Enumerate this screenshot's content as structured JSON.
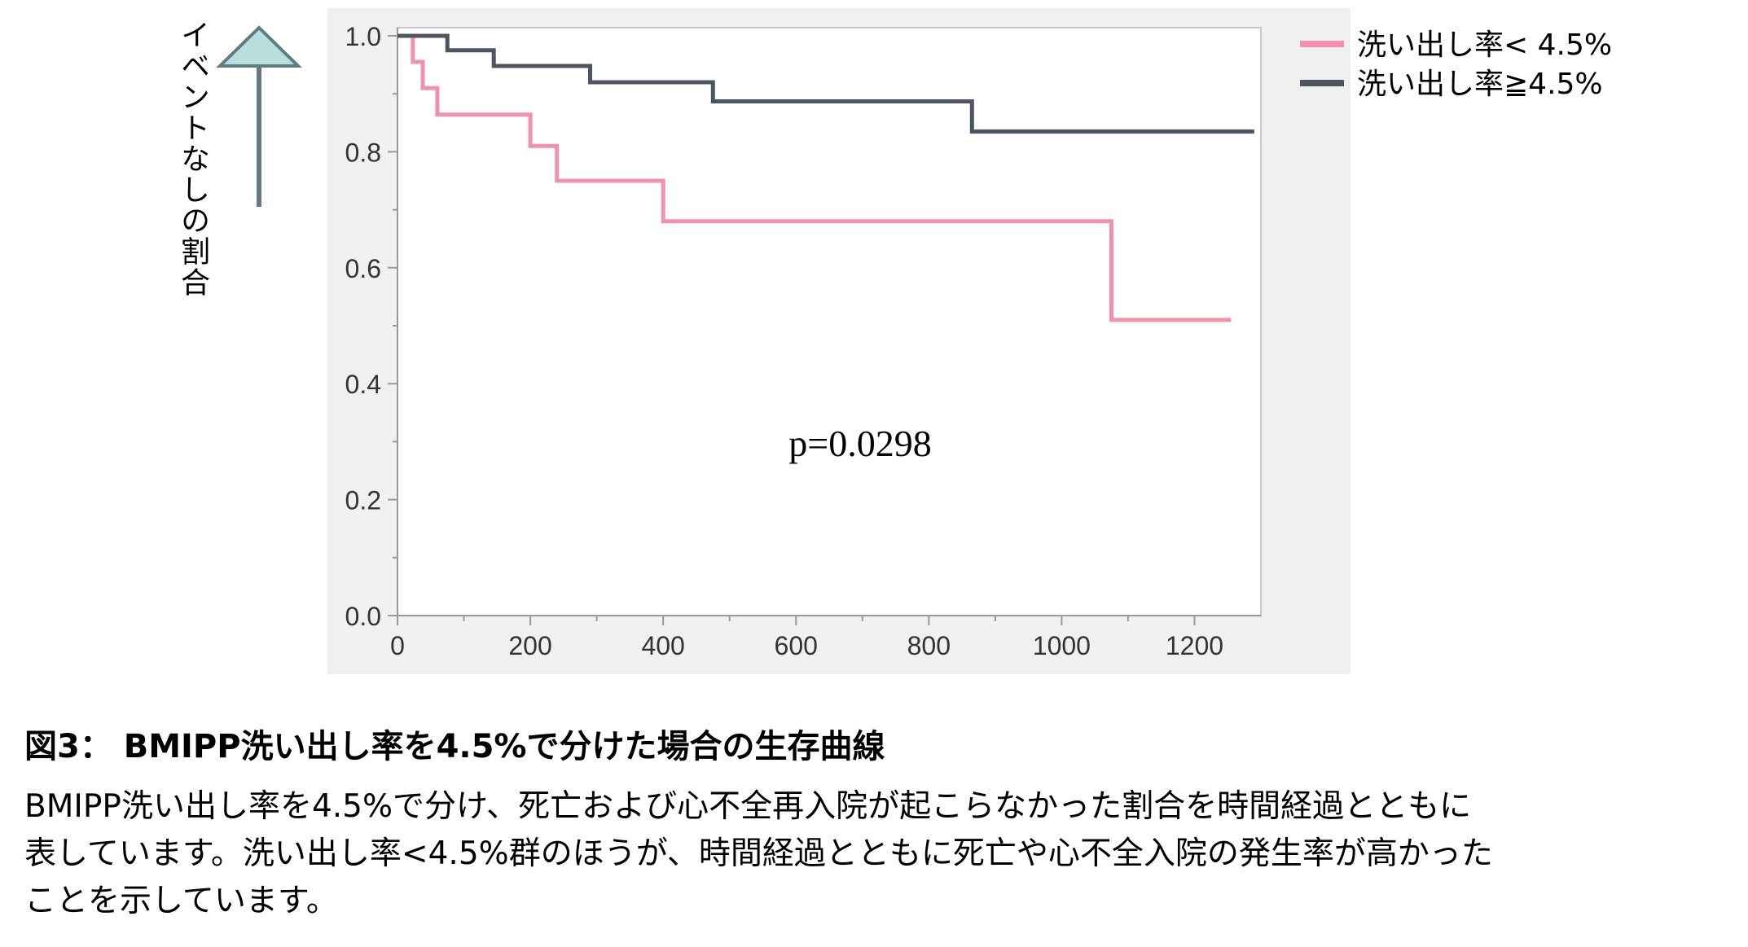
{
  "colors": {
    "low_group": "#f291ac",
    "high_group": "#4d5561",
    "arrow_fill": "#b9dede",
    "arrow_stroke": "#5f7c80",
    "plot_panel": "#f0f0f0",
    "axis": "#999999"
  },
  "arrow_icon": "up-arrow-icon",
  "chart_data": {
    "type": "line",
    "step": true,
    "title": "",
    "xlabel": "",
    "ylabel": "イベントなしの割合",
    "xlim": [
      0,
      1300
    ],
    "ylim": [
      0,
      1.0
    ],
    "x_ticks": [
      "0",
      "200",
      "400",
      "600",
      "800",
      "1000",
      "1200"
    ],
    "y_ticks": [
      "0.0",
      "0.2",
      "0.4",
      "0.6",
      "0.8",
      "1.0"
    ],
    "annotation": "p=0.0298",
    "legend_position": "top-right",
    "series": [
      {
        "name": "洗い出し率< 4.5%",
        "x": [
          0,
          23,
          23,
          38,
          38,
          60,
          60,
          200,
          200,
          240,
          240,
          400,
          400,
          1075,
          1075,
          1255
        ],
        "y": [
          1.0,
          1.0,
          0.955,
          0.955,
          0.91,
          0.91,
          0.864,
          0.864,
          0.81,
          0.81,
          0.75,
          0.75,
          0.68,
          0.68,
          0.51,
          0.51
        ]
      },
      {
        "name": "洗い出し率≧4.5%",
        "x": [
          0,
          75,
          75,
          145,
          145,
          290,
          290,
          475,
          475,
          865,
          865,
          1290
        ],
        "y": [
          1.0,
          1.0,
          0.975,
          0.975,
          0.948,
          0.948,
          0.92,
          0.92,
          0.887,
          0.887,
          0.835,
          0.835
        ]
      }
    ]
  },
  "caption": {
    "title": "図3：  BMIPP洗い出し率を4.5%で分けた場合の生存曲線",
    "line1": "BMIPP洗い出し率を4.5%で分け、死亡および心不全再入院が起こらなかった割合を時間経過とともに",
    "line2": "表しています。洗い出し率<4.5%群のほうが、時間経過とともに死亡や心不全入院の発生率が高かった",
    "line3": "ことを示しています。"
  }
}
